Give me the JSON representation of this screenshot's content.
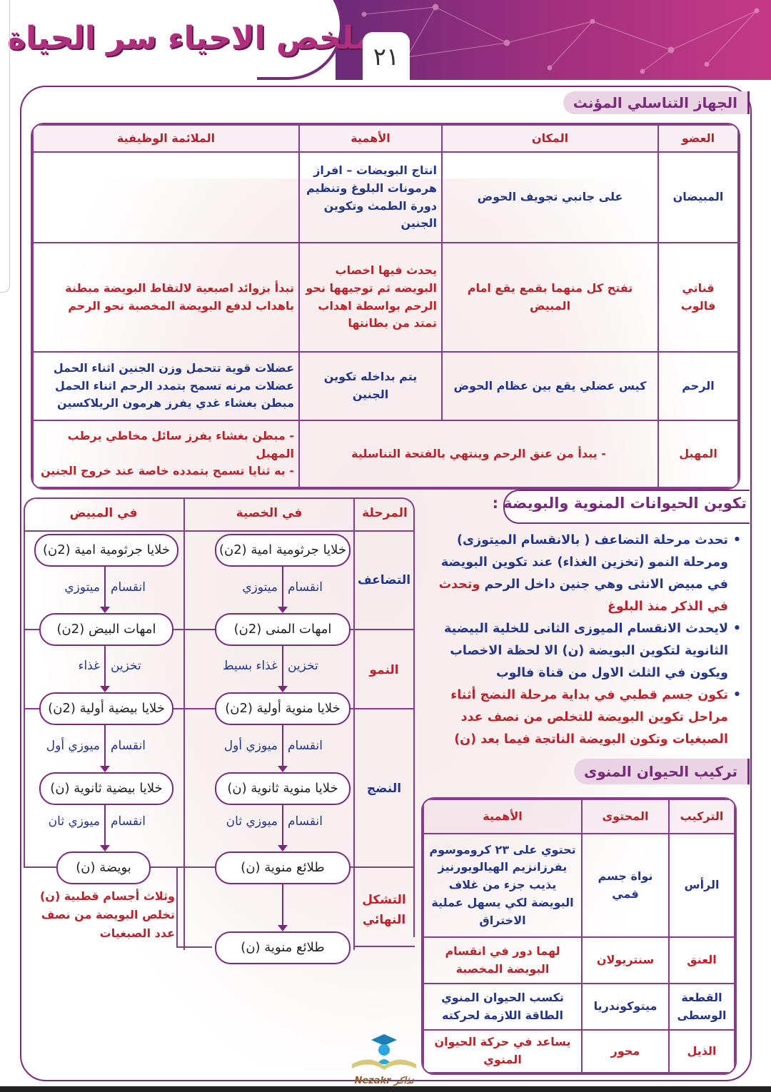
{
  "header": {
    "title": "ملخص الاحياء سر الحياة",
    "page_number": "٢١"
  },
  "female_system": {
    "title": "الجهاز التناسلي المؤنث",
    "columns": [
      "العضو",
      "المكان",
      "الأهمية",
      "الملائمة الوظيفية"
    ],
    "rows": [
      {
        "organ": "المبيضان",
        "location": "على جانبي تجويف الحوض",
        "importance": "انتاج البويضات – افراز هرمونات البلوغ وتنظيم دورة الطمث وتكوين الجنين",
        "adaptation": ""
      },
      {
        "organ": "قناتي فالوب",
        "location": "تفتح كل منهما بقمع يقع امام المبيض",
        "importance": "يحدث فيها اخصاب البويضه ثم توجيهها نحو الرحم بواسطة اهداب تمتد من بطانتها",
        "adaptation": "تبدأ بزوائد اصبعية لالتقاط البويضة مبطنة باهداب لدفع البويضة المخصبة نحو الرحم"
      },
      {
        "organ": "الرحم",
        "location": "كيس عضلي يقع بين عظام الحوض",
        "importance": "يتم بداخله تكوين الجنين",
        "adaptation": "عضلات قوية تتحمل وزن الجنين اثناء الحمل عضلات مرنه تسمح بتمدد الرحم اثناء الحمل مبطن بغشاء غدي يفرز هرمون الريلاكسين"
      },
      {
        "organ": "المهبل",
        "location": "- يبدأ من عنق الرحم وينتهي بالفتحة التناسلية",
        "adaptation_lines": [
          "- مبطن بغشاء يفرز سائل مخاطي يرطب المهبل",
          "- به ثنايا تسمح بتمدده خاصة عند خروج الجنين"
        ]
      }
    ]
  },
  "gametogenesis": {
    "title": "تكوين الحيوانات المنوية والبويضة :",
    "flow": {
      "headers": [
        "المرحلة",
        "في الخصية",
        "في المبيض"
      ],
      "stages": [
        "التضاعف",
        "النمو",
        "النضج",
        "التشكل النهائي"
      ],
      "testis_boxes": [
        "خلايا جرثومية امية (2ن)",
        "امهات المنى (2ن)",
        "خلايا منوية أولية (2ن)",
        "خلايا منوية ثانوية (ن)",
        "طلائع منوية (ن)",
        "طلائع منوية (ن)"
      ],
      "ovary_boxes": [
        "خلايا جرثومية امية (2ن)",
        "امهات البيض (2ن)",
        "خلايا بيضية أولية (2ن)",
        "خلايا بيضية ثانوية (ن)",
        "بويضة (ن)"
      ],
      "testis_arrows": [
        [
          "انقسام",
          "ميتوزي"
        ],
        [
          "تخزين",
          "غذاء بسيط"
        ],
        [
          "انقسام",
          "ميوزي أول"
        ],
        [
          "انقسام",
          "ميوزي ثان"
        ]
      ],
      "ovary_arrows": [
        [
          "انقسام",
          "ميتوزي"
        ],
        [
          "تخزين",
          "غذاء"
        ],
        [
          "انقسام",
          "ميوزي أول"
        ],
        [
          "انقسام",
          "ميوزي ثان"
        ]
      ],
      "ovum_note": "وثلاث أجسام قطبية (ن) تخلص البويضة من نصف عدد الصبغيات"
    },
    "bullets": [
      {
        "blue": "تحدث مرحلة التضاعف ( بالانقسام الميتوزى) ومرحلة النمو (تخزين الغذاء) عند تكوين البويضة في مبيض الانثى وهي جنين داخل الرحم",
        "red": "وتحدث في الذكر منذ البلوغ"
      },
      {
        "blue": "لايحدث الانقسام الميوزى الثانى للخلية البيضية الثانوية لتكوين البويضة (ن) الا لحظة الاخصاب ويكون في الثلث الاول من قناة فالوب",
        "red": ""
      },
      {
        "blue": "",
        "red": "تكون جسم قطبي في بداية مرحلة النضج أثناء مراحل تكوين البويضة للتخلص من نصف عدد الصبغيات وتكون البويضة الناتجة فيما بعد (ن)"
      }
    ]
  },
  "sperm_structure": {
    "title": "تركيب الحيوان المنوى",
    "columns": [
      "التركيب",
      "المحتوى",
      "الأهمية"
    ],
    "rows": [
      {
        "part": "الرأس",
        "content": "نواة جسم قمي",
        "importance": "تحتوي على ٢٣ كروموسوم يفرزانزيم الهيالويورنيز يذيب جزء من غلاف البويضة لكي يسهل عملية الاختراق",
        "color": "b"
      },
      {
        "part": "العنق",
        "content": "سنتريولان",
        "importance": "لهما دور في انقسام البويضة المخصبة",
        "color": "r"
      },
      {
        "part": "القطعة الوسطى",
        "content": "ميتوكوندريا",
        "importance": "تكسب الحيوان المنوي الطاقة اللازمة لحركته",
        "color": "b"
      },
      {
        "part": "الذيل",
        "content": "محور",
        "importance": "يساعد في حركة الحيوان المنوي",
        "color": "r"
      }
    ]
  },
  "logo": {
    "text": "Nezakr نذاكر"
  },
  "colors": {
    "purple": "#7a2a7a",
    "blue": "#24358a",
    "red": "#c0202a",
    "header_pink": "#b0307e"
  }
}
